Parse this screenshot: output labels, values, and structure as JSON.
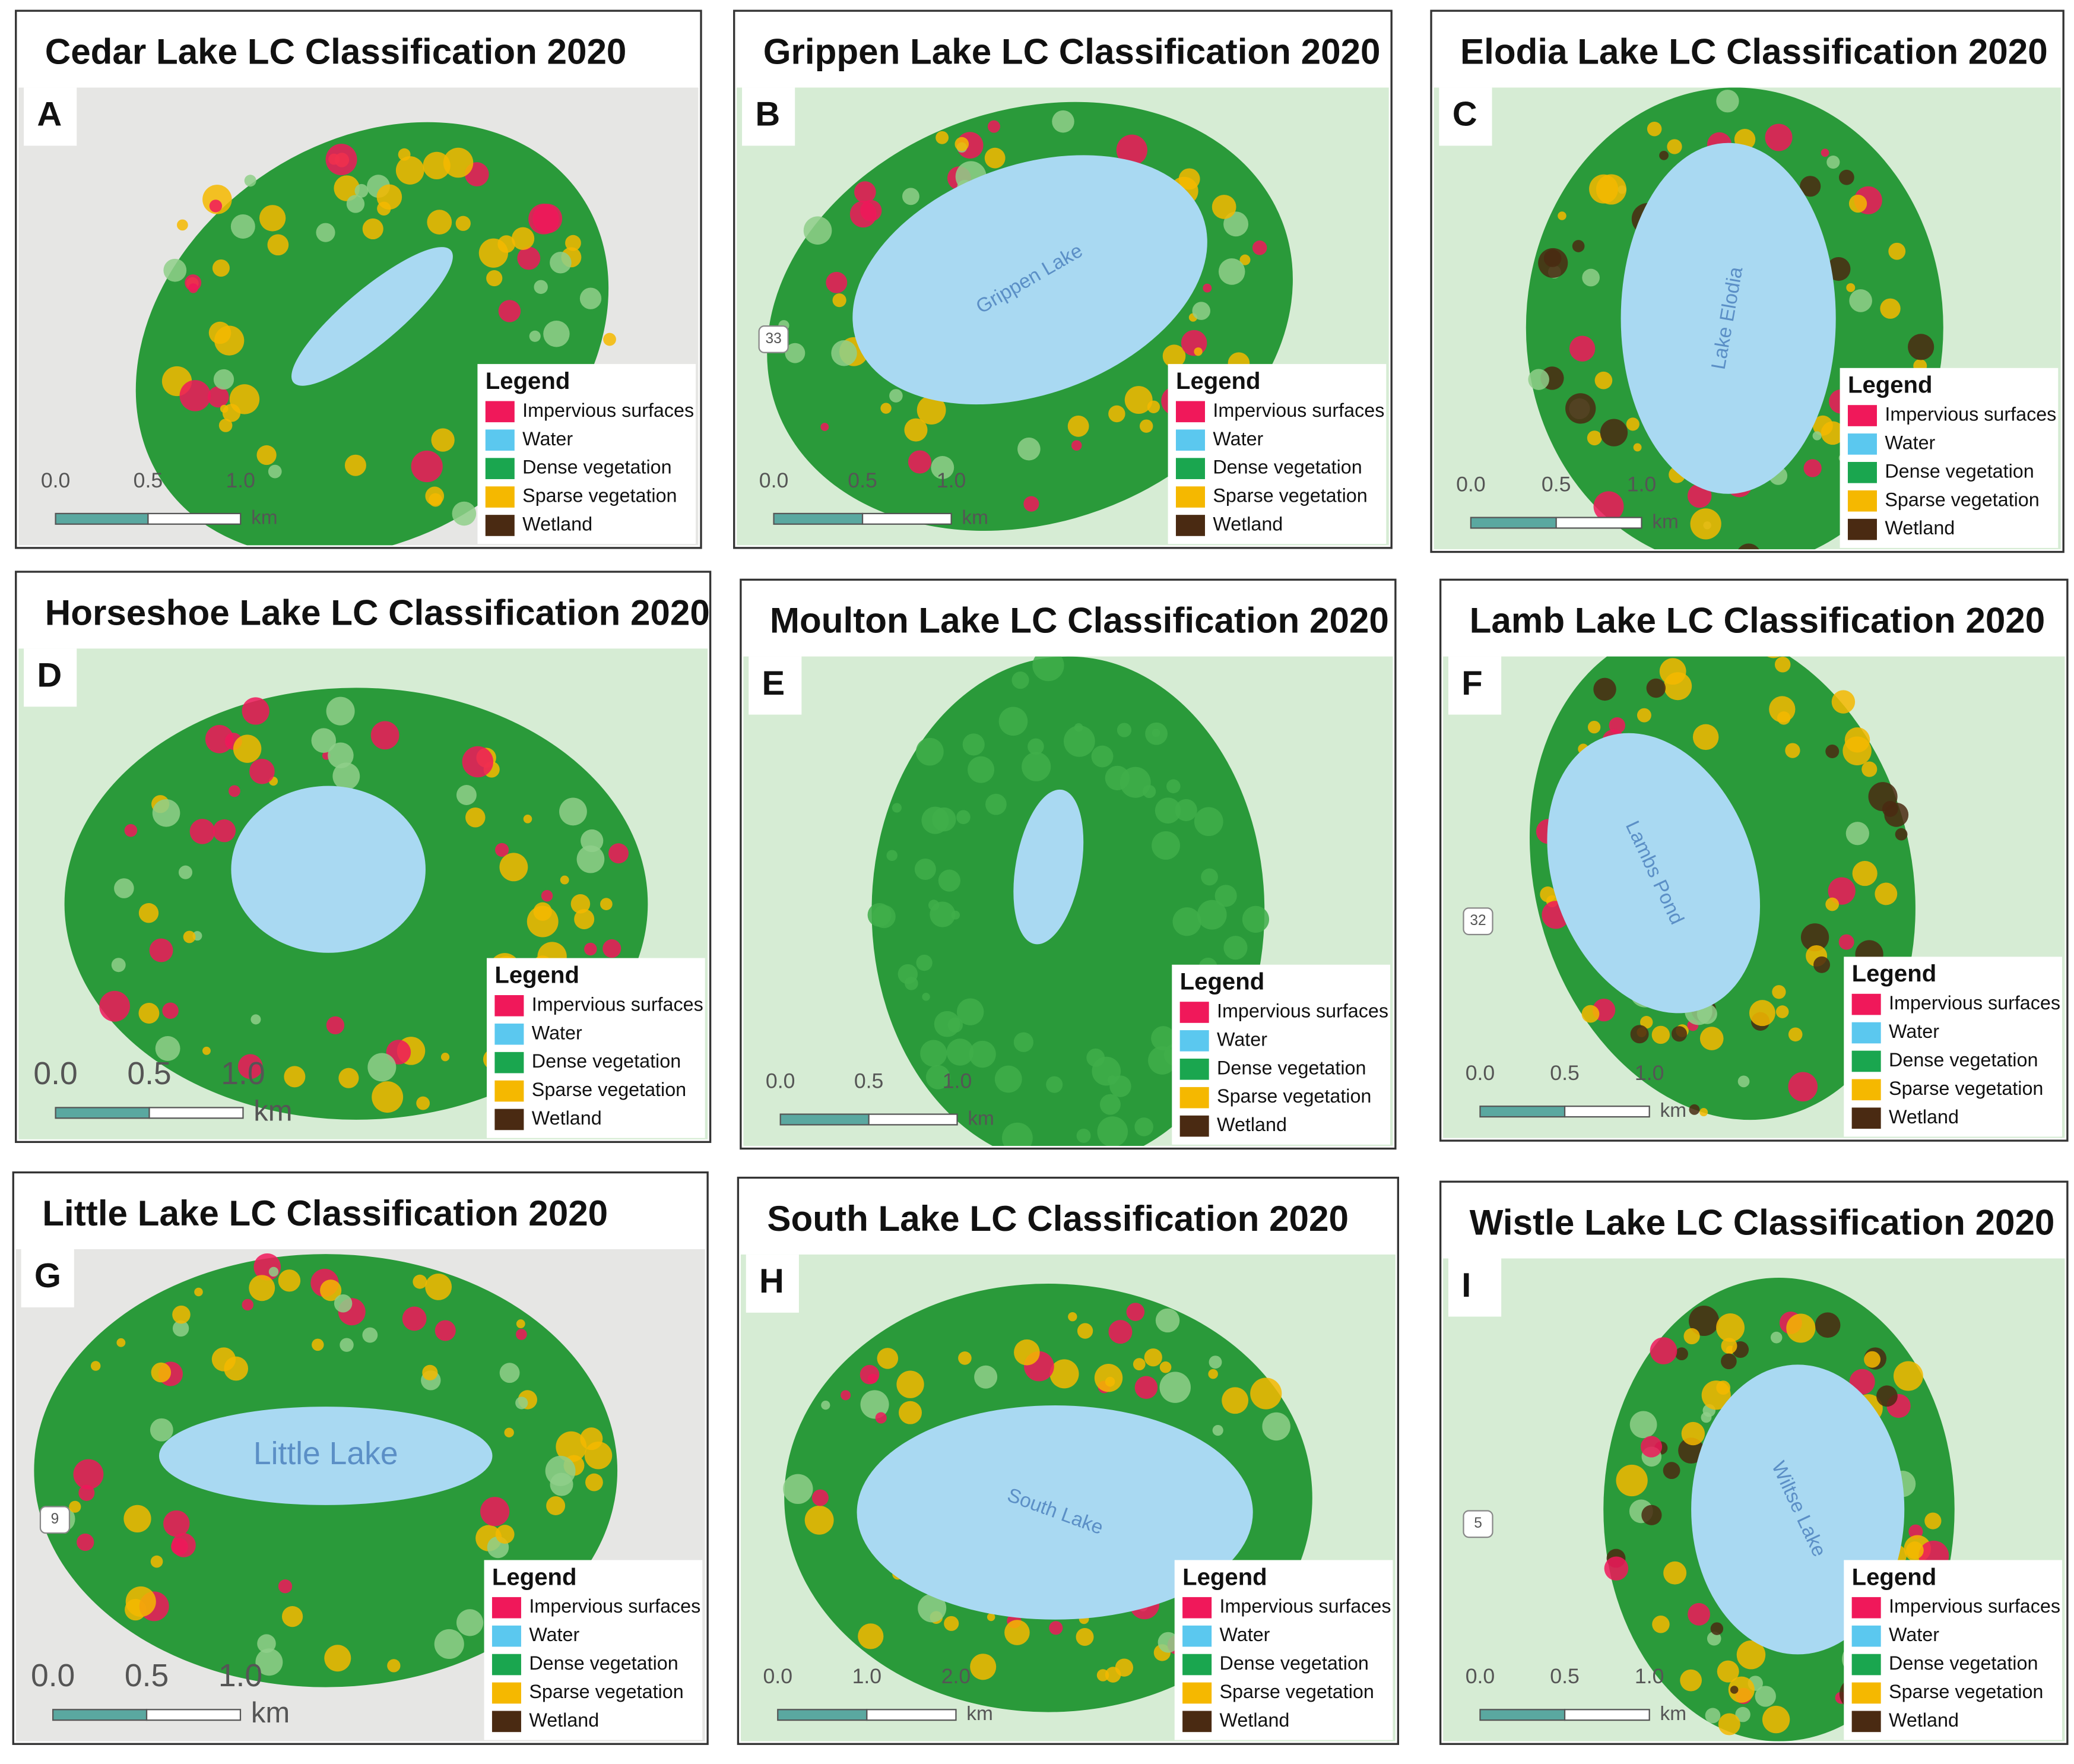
{
  "legend": {
    "title": "Legend",
    "items": [
      {
        "name": "Impervious surfaces",
        "color": "#f0185a"
      },
      {
        "name": "Water",
        "color": "#5bc8ef"
      },
      {
        "name": "Dense vegetation",
        "color": "#1aa64f"
      },
      {
        "name": "Sparse vegetation",
        "color": "#f5b800"
      },
      {
        "name": "Wetland",
        "color": "#4a2a12"
      }
    ]
  },
  "panels": [
    {
      "letter": "A",
      "title": "Cedar Lake LC Classification 2020",
      "scale": [
        "0.0",
        "0.5",
        "1.0"
      ],
      "unit": "km",
      "map_labels": []
    },
    {
      "letter": "B",
      "title": "Grippen Lake LC Classification 2020",
      "scale": [
        "0.0",
        "0.5",
        "1.0"
      ],
      "unit": "km",
      "map_labels": [
        "Grippen Lake",
        "33"
      ]
    },
    {
      "letter": "C",
      "title": "Elodia Lake LC Classification 2020",
      "scale": [
        "0.0",
        "0.5",
        "1.0"
      ],
      "unit": "km",
      "map_labels": [
        "Lake Elodia"
      ]
    },
    {
      "letter": "D",
      "title": "Horseshoe Lake LC Classification 2020",
      "scale": [
        "0.0",
        "0.5",
        "1.0"
      ],
      "unit": "km",
      "map_labels": []
    },
    {
      "letter": "E",
      "title": "Moulton Lake LC Classification 2020",
      "scale": [
        "0.0",
        "0.5",
        "1.0"
      ],
      "unit": "km",
      "map_labels": []
    },
    {
      "letter": "F",
      "title": "Lamb Lake LC Classification 2020",
      "scale": [
        "0.0",
        "0.5",
        "1.0"
      ],
      "unit": "km",
      "map_labels": [
        "Lambs Pond",
        "32"
      ]
    },
    {
      "letter": "G",
      "title": "Little Lake LC Classification 2020",
      "scale": [
        "0.0",
        "0.5",
        "1.0"
      ],
      "unit": "km",
      "map_labels": [
        "Little Lake",
        "9"
      ]
    },
    {
      "letter": "H",
      "title": "South Lake LC Classification 2020",
      "scale": [
        "0.0",
        "1.0",
        "2.0"
      ],
      "unit": "km",
      "map_labels": [
        "South Lake"
      ]
    },
    {
      "letter": "I",
      "title": "Wistle Lake LC Classification 2020",
      "scale": [
        "0.0",
        "0.5",
        "1.0"
      ],
      "unit": "km",
      "map_labels": [
        "Wiltse Lake",
        "5"
      ]
    }
  ]
}
